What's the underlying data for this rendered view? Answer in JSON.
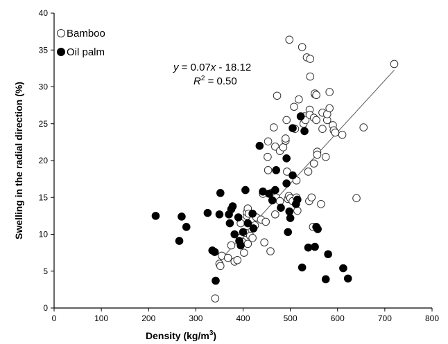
{
  "chart_data": {
    "type": "scatter",
    "title": "",
    "xlabel": "Density (kg/m",
    "xlabel_sup": "3",
    "xlabel_end": ")",
    "ylabel": "Swelling in the radial direction (%)",
    "xlim": [
      0,
      800
    ],
    "ylim": [
      0,
      40
    ],
    "x_ticks": [
      "0",
      "100",
      "200",
      "300",
      "400",
      "500",
      "600",
      "700",
      "800"
    ],
    "y_ticks": [
      "0",
      "5",
      "10",
      "15",
      "20",
      "25",
      "30",
      "35",
      "40"
    ],
    "grid": false,
    "legend_position": "top-left",
    "equation": {
      "y_var": "y",
      "rest": " = 0.07",
      "x_var": "x",
      "tail": " - 18.12",
      "r_var": "R",
      "r_sup": "2",
      "r_tail": " = 0.50"
    },
    "trendline": {
      "slope": 0.07,
      "intercept": -18.12,
      "x_range": [
        350,
        720
      ]
    },
    "series": [
      {
        "name": "Bamboo",
        "marker": "open-circle",
        "points": [
          [
            341,
            1.3
          ],
          [
            350,
            6.0
          ],
          [
            352,
            5.7
          ],
          [
            355,
            7.1
          ],
          [
            368,
            6.8
          ],
          [
            375,
            8.5
          ],
          [
            382,
            6.3
          ],
          [
            388,
            6.5
          ],
          [
            393,
            9.5
          ],
          [
            395,
            11.5
          ],
          [
            398,
            9.0
          ],
          [
            402,
            7.5
          ],
          [
            405,
            10.2
          ],
          [
            408,
            12.5
          ],
          [
            408,
            13.0
          ],
          [
            410,
            13.5
          ],
          [
            410,
            8.7
          ],
          [
            412,
            12.8
          ],
          [
            415,
            9.8
          ],
          [
            420,
            9.5
          ],
          [
            425,
            11.2
          ],
          [
            428,
            12.3
          ],
          [
            438,
            12.0
          ],
          [
            442,
            15.5
          ],
          [
            445,
            8.9
          ],
          [
            448,
            11.7
          ],
          [
            452,
            20.5
          ],
          [
            453,
            18.7
          ],
          [
            453,
            22.6
          ],
          [
            458,
            7.7
          ],
          [
            460,
            15.6
          ],
          [
            465,
            24.5
          ],
          [
            468,
            12.7
          ],
          [
            468,
            21.9
          ],
          [
            470,
            15.0
          ],
          [
            472,
            28.8
          ],
          [
            478,
            14.5
          ],
          [
            478,
            21.3
          ],
          [
            485,
            21.8
          ],
          [
            490,
            22.7
          ],
          [
            490,
            23.0
          ],
          [
            492,
            25.5
          ],
          [
            493,
            18.5
          ],
          [
            495,
            14.8
          ],
          [
            497,
            15.2
          ],
          [
            498,
            36.4
          ],
          [
            500,
            14.9
          ],
          [
            505,
            14.5
          ],
          [
            508,
            27.3
          ],
          [
            510,
            24.3
          ],
          [
            513,
            15.0
          ],
          [
            513,
            17.3
          ],
          [
            515,
            13.2
          ],
          [
            518,
            28.3
          ],
          [
            525,
            35.4
          ],
          [
            528,
            25.0
          ],
          [
            530,
            26.0
          ],
          [
            532,
            25.5
          ],
          [
            535,
            34.0
          ],
          [
            538,
            18.5
          ],
          [
            540,
            14.5
          ],
          [
            541,
            26.9
          ],
          [
            541,
            26.2
          ],
          [
            542,
            31.4
          ],
          [
            542,
            33.8
          ],
          [
            545,
            15.0
          ],
          [
            548,
            11.0
          ],
          [
            550,
            25.8
          ],
          [
            550,
            19.6
          ],
          [
            552,
            29.0
          ],
          [
            552,
            29.1
          ],
          [
            555,
            25.5
          ],
          [
            555,
            28.9
          ],
          [
            557,
            21.2
          ],
          [
            557,
            20.8
          ],
          [
            565,
            14.1
          ],
          [
            568,
            26.5
          ],
          [
            568,
            24.3
          ],
          [
            575,
            20.5
          ],
          [
            578,
            25.5
          ],
          [
            578,
            26.3
          ],
          [
            583,
            29.3
          ],
          [
            583,
            27.1
          ],
          [
            590,
            24.8
          ],
          [
            592,
            24.1
          ],
          [
            595,
            23.8
          ],
          [
            610,
            23.5
          ],
          [
            640,
            14.9
          ],
          [
            655,
            24.5
          ],
          [
            720,
            33.1
          ]
        ]
      },
      {
        "name": "Oil palm",
        "marker": "filled-circle",
        "points": [
          [
            215,
            12.5
          ],
          [
            265,
            9.1
          ],
          [
            270,
            12.4
          ],
          [
            280,
            11.0
          ],
          [
            325,
            12.9
          ],
          [
            335,
            7.8
          ],
          [
            340,
            7.6
          ],
          [
            342,
            3.7
          ],
          [
            350,
            12.7
          ],
          [
            352,
            15.6
          ],
          [
            370,
            12.7
          ],
          [
            372,
            11.5
          ],
          [
            375,
            13.4
          ],
          [
            378,
            13.8
          ],
          [
            382,
            10.0
          ],
          [
            390,
            12.3
          ],
          [
            392,
            9.1
          ],
          [
            395,
            8.5
          ],
          [
            400,
            10.3
          ],
          [
            405,
            16.0
          ],
          [
            410,
            11.5
          ],
          [
            420,
            12.8
          ],
          [
            422,
            10.8
          ],
          [
            435,
            22.0
          ],
          [
            442,
            15.8
          ],
          [
            455,
            15.5
          ],
          [
            462,
            14.6
          ],
          [
            468,
            16.0
          ],
          [
            470,
            18.7
          ],
          [
            480,
            13.6
          ],
          [
            492,
            16.9
          ],
          [
            492,
            20.3
          ],
          [
            495,
            10.3
          ],
          [
            498,
            13.1
          ],
          [
            500,
            12.2
          ],
          [
            505,
            18.0
          ],
          [
            505,
            24.4
          ],
          [
            512,
            14.1
          ],
          [
            515,
            14.7
          ],
          [
            522,
            26.0
          ],
          [
            525,
            5.5
          ],
          [
            530,
            24.0
          ],
          [
            538,
            8.2
          ],
          [
            552,
            8.3
          ],
          [
            555,
            11.0
          ],
          [
            558,
            10.7
          ],
          [
            575,
            3.9
          ],
          [
            580,
            7.3
          ],
          [
            612,
            5.4
          ],
          [
            622,
            4.0
          ]
        ]
      }
    ]
  }
}
